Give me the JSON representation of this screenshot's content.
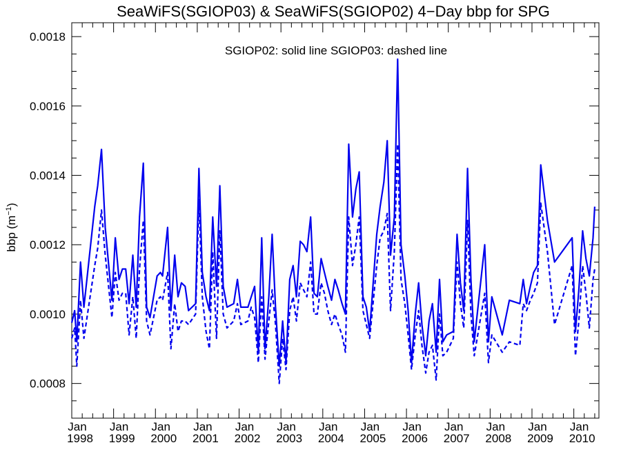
{
  "chart_data": {
    "type": "line",
    "title": "SeaWiFS(SGIOP03) & SeaWiFS(SGIOP02) 4−Day bbp for SPG",
    "annotation": "SGIOP02: solid line   SGIOP03: dashed line",
    "ylabel": "bbp (m",
    "ylabel_sup": "−1",
    "ylabel_close": ")",
    "xlim": [
      1998.0,
      2010.6
    ],
    "ylim": [
      0.0007,
      0.00184
    ],
    "y_ticks": [
      {
        "value": 0.0008,
        "label": "0.0008"
      },
      {
        "value": 0.001,
        "label": "0.0010"
      },
      {
        "value": 0.0012,
        "label": "0.0012"
      },
      {
        "value": 0.0014,
        "label": "0.0014"
      },
      {
        "value": 0.0016,
        "label": "0.0016"
      },
      {
        "value": 0.0018,
        "label": "0.0018"
      }
    ],
    "x_ticks": [
      {
        "value": 1998,
        "month": "Jan",
        "year": "1998"
      },
      {
        "value": 1999,
        "month": "Jan",
        "year": "1999"
      },
      {
        "value": 2000,
        "month": "Jan",
        "year": "2000"
      },
      {
        "value": 2001,
        "month": "Jan",
        "year": "2001"
      },
      {
        "value": 2002,
        "month": "Jan",
        "year": "2002"
      },
      {
        "value": 2003,
        "month": "Jan",
        "year": "2003"
      },
      {
        "value": 2004,
        "month": "Jan",
        "year": "2004"
      },
      {
        "value": 2005,
        "month": "Jan",
        "year": "2005"
      },
      {
        "value": 2006,
        "month": "Jan",
        "year": "2006"
      },
      {
        "value": 2007,
        "month": "Jan",
        "year": "2007"
      },
      {
        "value": 2008,
        "month": "Jan",
        "year": "2008"
      },
      {
        "value": 2009,
        "month": "Jan",
        "year": "2009"
      },
      {
        "value": 2010,
        "month": "Jan",
        "year": "2010"
      }
    ],
    "line_color": "#0000ee",
    "series": [
      {
        "style": "solid",
        "points": [
          [
            1998.0,
            0.000975
          ],
          [
            1998.07,
            0.00101
          ],
          [
            1998.12,
            0.00092
          ],
          [
            1998.21,
            0.00115
          ],
          [
            1998.29,
            0.00102
          ],
          [
            1998.55,
            0.00131
          ],
          [
            1998.62,
            0.00137
          ],
          [
            1998.71,
            0.001475
          ],
          [
            1998.8,
            0.00125
          ],
          [
            1998.96,
            0.00104
          ],
          [
            1999.04,
            0.00122
          ],
          [
            1999.13,
            0.0011
          ],
          [
            1999.21,
            0.00113
          ],
          [
            1999.29,
            0.00113
          ],
          [
            1999.37,
            0.00103
          ],
          [
            1999.46,
            0.00117
          ],
          [
            1999.54,
            0.00102
          ],
          [
            1999.62,
            0.00128
          ],
          [
            1999.71,
            0.001435
          ],
          [
            1999.79,
            0.00102
          ],
          [
            1999.87,
            0.00099
          ],
          [
            2000.04,
            0.00111
          ],
          [
            2000.12,
            0.00112
          ],
          [
            2000.17,
            0.00111
          ],
          [
            2000.29,
            0.00125
          ],
          [
            2000.37,
            0.00101
          ],
          [
            2000.46,
            0.00117
          ],
          [
            2000.54,
            0.00105
          ],
          [
            2000.62,
            0.00109
          ],
          [
            2000.71,
            0.00108
          ],
          [
            2000.79,
            0.00101
          ],
          [
            2000.96,
            0.00103
          ],
          [
            2001.04,
            0.00142
          ],
          [
            2001.12,
            0.00112
          ],
          [
            2001.21,
            0.00105
          ],
          [
            2001.29,
            0.00101
          ],
          [
            2001.37,
            0.00128
          ],
          [
            2001.46,
            0.00108
          ],
          [
            2001.54,
            0.00137
          ],
          [
            2001.62,
            0.00108
          ],
          [
            2001.71,
            0.00102
          ],
          [
            2001.87,
            0.00103
          ],
          [
            2001.96,
            0.0011
          ],
          [
            2002.04,
            0.00102
          ],
          [
            2002.21,
            0.00102
          ],
          [
            2002.29,
            0.00105
          ],
          [
            2002.37,
            0.00108
          ],
          [
            2002.46,
            0.00089
          ],
          [
            2002.54,
            0.00122
          ],
          [
            2002.62,
            0.0009
          ],
          [
            2002.71,
            0.00105
          ],
          [
            2002.79,
            0.00123
          ],
          [
            2002.87,
            0.00102
          ],
          [
            2002.96,
            0.00085
          ],
          [
            2003.04,
            0.00098
          ],
          [
            2003.12,
            0.00086
          ],
          [
            2003.21,
            0.0011
          ],
          [
            2003.29,
            0.00114
          ],
          [
            2003.37,
            0.00105
          ],
          [
            2003.46,
            0.00121
          ],
          [
            2003.54,
            0.0012
          ],
          [
            2003.62,
            0.00118
          ],
          [
            2003.71,
            0.00128
          ],
          [
            2003.79,
            0.00106
          ],
          [
            2003.87,
            0.00105
          ],
          [
            2003.96,
            0.00116
          ],
          [
            2004.04,
            0.00112
          ],
          [
            2004.12,
            0.00108
          ],
          [
            2004.21,
            0.00104
          ],
          [
            2004.29,
            0.0011
          ],
          [
            2004.37,
            0.00107
          ],
          [
            2004.46,
            0.00103
          ],
          [
            2004.54,
            0.001
          ],
          [
            2004.62,
            0.00149
          ],
          [
            2004.71,
            0.00128
          ],
          [
            2004.79,
            0.00136
          ],
          [
            2004.87,
            0.00141
          ],
          [
            2004.96,
            0.00105
          ],
          [
            2005.04,
            0.00102
          ],
          [
            2005.12,
            0.00095
          ],
          [
            2005.29,
            0.00123
          ],
          [
            2005.37,
            0.00131
          ],
          [
            2005.46,
            0.00138
          ],
          [
            2005.54,
            0.0015
          ],
          [
            2005.62,
            0.00117
          ],
          [
            2005.71,
            0.00128
          ],
          [
            2005.79,
            0.001735
          ],
          [
            2005.87,
            0.0012
          ],
          [
            2005.96,
            0.00111
          ],
          [
            2006.04,
            0.00101
          ],
          [
            2006.12,
            0.00086
          ],
          [
            2006.21,
            0.001
          ],
          [
            2006.29,
            0.00109
          ],
          [
            2006.37,
            0.00097
          ],
          [
            2006.46,
            0.00088
          ],
          [
            2006.54,
            0.00098
          ],
          [
            2006.62,
            0.00103
          ],
          [
            2006.71,
            0.00089
          ],
          [
            2006.79,
            0.0011
          ],
          [
            2006.87,
            0.00092
          ],
          [
            2006.96,
            0.00094
          ],
          [
            2007.12,
            0.00095
          ],
          [
            2007.21,
            0.00123
          ],
          [
            2007.29,
            0.00109
          ],
          [
            2007.37,
            0.00101
          ],
          [
            2007.46,
            0.00142
          ],
          [
            2007.54,
            0.0011
          ],
          [
            2007.62,
            0.00092
          ],
          [
            2007.87,
            0.0012
          ],
          [
            2007.96,
            0.00092
          ],
          [
            2008.04,
            0.00105
          ],
          [
            2008.29,
            0.00094
          ],
          [
            2008.46,
            0.00104
          ],
          [
            2008.71,
            0.00103
          ],
          [
            2008.79,
            0.0011
          ],
          [
            2008.87,
            0.00103
          ],
          [
            2008.96,
            0.00108
          ],
          [
            2009.04,
            0.00112
          ],
          [
            2009.13,
            0.00114
          ],
          [
            2009.21,
            0.00143
          ],
          [
            2009.37,
            0.00127
          ],
          [
            2009.54,
            0.00115
          ],
          [
            2009.96,
            0.00122
          ],
          [
            2010.04,
            0.00095
          ],
          [
            2010.12,
            0.00107
          ],
          [
            2010.21,
            0.00124
          ],
          [
            2010.29,
            0.00116
          ],
          [
            2010.37,
            0.00111
          ],
          [
            2010.46,
            0.00122
          ],
          [
            2010.5,
            0.00131
          ]
        ]
      },
      {
        "style": "dashed",
        "points": [
          [
            1998.0,
            0.00093
          ],
          [
            1998.07,
            0.00096
          ],
          [
            1998.12,
            0.00085
          ],
          [
            1998.21,
            0.00104
          ],
          [
            1998.29,
            0.00093
          ],
          [
            1998.55,
            0.00114
          ],
          [
            1998.62,
            0.00119
          ],
          [
            1998.71,
            0.0013
          ],
          [
            1998.8,
            0.00117
          ],
          [
            1998.96,
            0.00099
          ],
          [
            1999.04,
            0.00112
          ],
          [
            1999.13,
            0.00104
          ],
          [
            1999.21,
            0.00106
          ],
          [
            1999.29,
            0.00106
          ],
          [
            1999.37,
            0.00094
          ],
          [
            1999.46,
            0.00105
          ],
          [
            1999.54,
            0.00093
          ],
          [
            1999.62,
            0.00113
          ],
          [
            1999.71,
            0.00127
          ],
          [
            1999.79,
            0.00098
          ],
          [
            1999.87,
            0.00094
          ],
          [
            2000.04,
            0.00104
          ],
          [
            2000.12,
            0.00105
          ],
          [
            2000.17,
            0.00104
          ],
          [
            2000.29,
            0.00112
          ],
          [
            2000.37,
            0.0009
          ],
          [
            2000.46,
            0.00103
          ],
          [
            2000.54,
            0.00095
          ],
          [
            2000.62,
            0.00098
          ],
          [
            2000.71,
            0.00098
          ],
          [
            2000.79,
            0.00097
          ],
          [
            2000.96,
            0.001
          ],
          [
            2001.04,
            0.00133
          ],
          [
            2001.12,
            0.00105
          ],
          [
            2001.21,
            0.00095
          ],
          [
            2001.29,
            0.0009
          ],
          [
            2001.37,
            0.00118
          ],
          [
            2001.46,
            0.00093
          ],
          [
            2001.54,
            0.00124
          ],
          [
            2001.62,
            0.001
          ],
          [
            2001.71,
            0.00096
          ],
          [
            2001.87,
            0.00098
          ],
          [
            2001.96,
            0.00103
          ],
          [
            2002.04,
            0.00097
          ],
          [
            2002.21,
            0.00098
          ],
          [
            2002.29,
            0.00102
          ],
          [
            2002.37,
            0.00099
          ],
          [
            2002.46,
            0.00086
          ],
          [
            2002.54,
            0.00105
          ],
          [
            2002.62,
            0.00087
          ],
          [
            2002.71,
            0.00098
          ],
          [
            2002.79,
            0.00107
          ],
          [
            2002.87,
            0.00097
          ],
          [
            2002.96,
            0.0008
          ],
          [
            2003.04,
            0.00093
          ],
          [
            2003.12,
            0.00084
          ],
          [
            2003.21,
            0.00101
          ],
          [
            2003.29,
            0.00105
          ],
          [
            2003.37,
            0.00098
          ],
          [
            2003.46,
            0.00109
          ],
          [
            2003.54,
            0.00107
          ],
          [
            2003.62,
            0.00105
          ],
          [
            2003.71,
            0.00115
          ],
          [
            2003.79,
            0.001
          ],
          [
            2003.87,
            0.001
          ],
          [
            2003.96,
            0.00109
          ],
          [
            2004.04,
            0.00106
          ],
          [
            2004.12,
            0.00101
          ],
          [
            2004.21,
            0.00097
          ],
          [
            2004.29,
            0.001
          ],
          [
            2004.37,
            0.00097
          ],
          [
            2004.46,
            0.00094
          ],
          [
            2004.54,
            0.00089
          ],
          [
            2004.62,
            0.00128
          ],
          [
            2004.71,
            0.00114
          ],
          [
            2004.79,
            0.0012
          ],
          [
            2004.87,
            0.00128
          ],
          [
            2004.96,
            0.00101
          ],
          [
            2005.04,
            0.00097
          ],
          [
            2005.12,
            0.00093
          ],
          [
            2005.29,
            0.00114
          ],
          [
            2005.37,
            0.00122
          ],
          [
            2005.46,
            0.00124
          ],
          [
            2005.54,
            0.00129
          ],
          [
            2005.62,
            0.00101
          ],
          [
            2005.71,
            0.00118
          ],
          [
            2005.79,
            0.00149
          ],
          [
            2005.87,
            0.0011
          ],
          [
            2005.96,
            0.00103
          ],
          [
            2006.04,
            0.00094
          ],
          [
            2006.12,
            0.00084
          ],
          [
            2006.21,
            0.00094
          ],
          [
            2006.29,
            0.00101
          ],
          [
            2006.37,
            0.00091
          ],
          [
            2006.46,
            0.00083
          ],
          [
            2006.54,
            0.00089
          ],
          [
            2006.62,
            0.00091
          ],
          [
            2006.71,
            0.00081
          ],
          [
            2006.79,
            0.001
          ],
          [
            2006.87,
            0.00088
          ],
          [
            2006.96,
            0.00089
          ],
          [
            2007.12,
            0.00093
          ],
          [
            2007.21,
            0.00115
          ],
          [
            2007.29,
            0.00103
          ],
          [
            2007.37,
            0.00096
          ],
          [
            2007.46,
            0.00127
          ],
          [
            2007.54,
            0.001
          ],
          [
            2007.62,
            0.00088
          ],
          [
            2007.87,
            0.00106
          ],
          [
            2007.96,
            0.00086
          ],
          [
            2008.04,
            0.00094
          ],
          [
            2008.29,
            0.00089
          ],
          [
            2008.46,
            0.00092
          ],
          [
            2008.71,
            0.00091
          ],
          [
            2008.79,
            0.00103
          ],
          [
            2008.87,
            0.00101
          ],
          [
            2008.96,
            0.00104
          ],
          [
            2009.04,
            0.00106
          ],
          [
            2009.13,
            0.00109
          ],
          [
            2009.21,
            0.00132
          ],
          [
            2009.37,
            0.00118
          ],
          [
            2009.54,
            0.00097
          ],
          [
            2009.96,
            0.00114
          ],
          [
            2010.04,
            0.00088
          ],
          [
            2010.12,
            0.00098
          ],
          [
            2010.21,
            0.00114
          ],
          [
            2010.29,
            0.00106
          ],
          [
            2010.37,
            0.00096
          ],
          [
            2010.46,
            0.0011
          ],
          [
            2010.5,
            0.00113
          ]
        ]
      }
    ]
  }
}
